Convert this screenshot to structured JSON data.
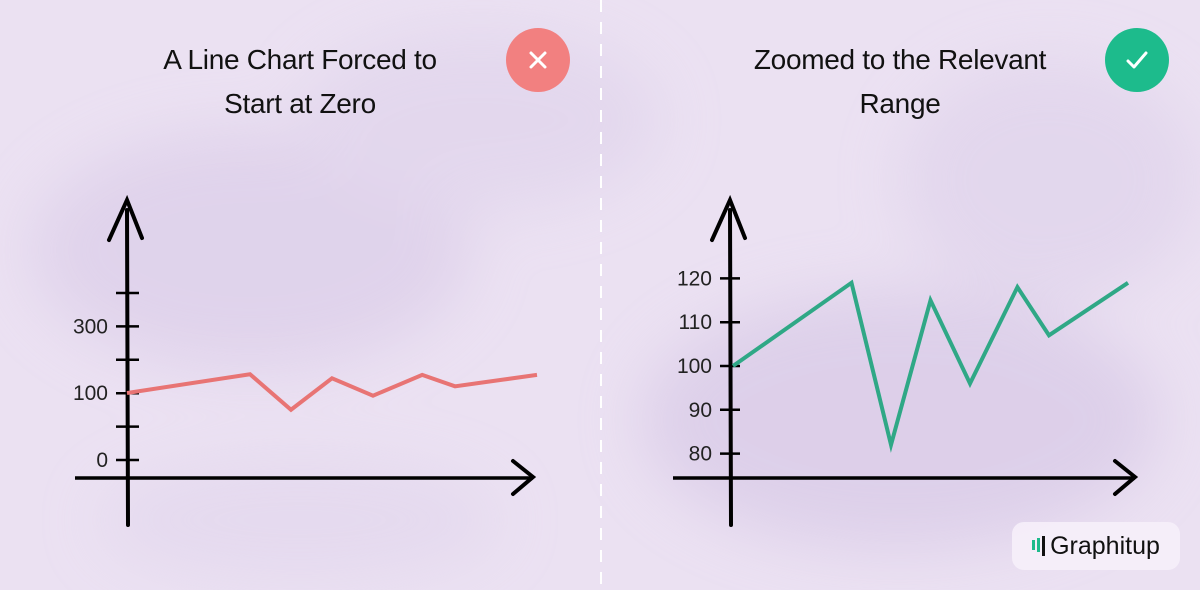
{
  "colors": {
    "bad": "#e87474",
    "good": "#2fa886",
    "bad_badge": "#f28080",
    "good_badge": "#1dbb8c",
    "background": "#ebe1f2"
  },
  "panels": [
    {
      "title_line1": "A Line Chart Forced to",
      "title_line2": "Start at Zero",
      "badge_icon": "x-icon"
    },
    {
      "title_line1": "Zoomed to the Relevant",
      "title_line2": "Range",
      "badge_icon": "check-icon"
    }
  ],
  "logo": {
    "text": "Graphitup"
  },
  "chart_data": [
    {
      "type": "line",
      "title": "A Line Chart Forced to Start at Zero",
      "y_tick_labels": [
        "0",
        "",
        "100",
        "",
        "300",
        ""
      ],
      "x": [
        0,
        3,
        4,
        5,
        6,
        7.2,
        8,
        10
      ],
      "values": [
        100,
        128,
        75,
        122,
        96,
        127,
        110,
        127
      ],
      "grid": false,
      "color": "#e87474"
    },
    {
      "type": "line",
      "title": "Zoomed to the Relevant Range",
      "y_tick_labels": [
        "80",
        "90",
        "100",
        "110",
        "120"
      ],
      "y_ticks": [
        80,
        90,
        100,
        110,
        120
      ],
      "x": [
        0,
        3,
        4,
        5,
        6,
        7.2,
        8,
        10
      ],
      "values": [
        100,
        119,
        82,
        115,
        96,
        118,
        107,
        119
      ],
      "grid": false,
      "color": "#2fa886"
    }
  ]
}
